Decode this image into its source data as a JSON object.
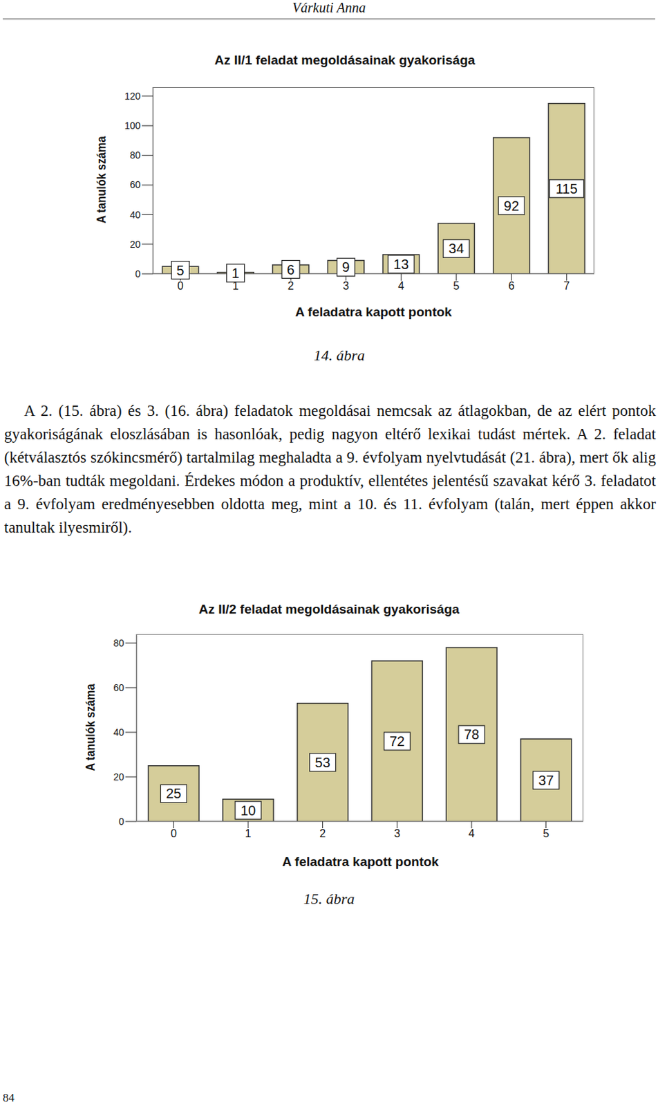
{
  "header": "Várkuti Anna",
  "chart_data": [
    {
      "type": "bar",
      "title": "Az II/1 feladat megoldásainak gyakorisága",
      "x_label": "A feladatra kapott pontok",
      "y_label": "A tanulók száma",
      "categories": [
        "0",
        "1",
        "2",
        "3",
        "4",
        "5",
        "6",
        "7"
      ],
      "values": [
        5,
        1,
        6,
        9,
        13,
        34,
        92,
        115
      ],
      "color": "#d5cd9a",
      "ylim": [
        0,
        126
      ],
      "yticks": [
        0,
        20,
        40,
        60,
        80,
        100,
        120
      ],
      "grid": false,
      "data_labels": true
    },
    {
      "type": "bar",
      "title": "Az II/2 feladat megoldásainak gyakorisága",
      "x_label": "A feladatra kapott pontok",
      "y_label": "A tanulók száma",
      "categories": [
        "0",
        "1",
        "2",
        "3",
        "4",
        "5"
      ],
      "values": [
        25,
        10,
        53,
        72,
        78,
        37
      ],
      "color": "#d5cd9a",
      "ylim": [
        0,
        84
      ],
      "yticks": [
        0,
        20,
        40,
        60,
        80
      ],
      "grid": false,
      "data_labels": true
    }
  ],
  "figure_captions": [
    "14. ábra",
    "15. ábra"
  ],
  "paragraph": "A 2. (15. ábra) és 3. (16. ábra) feladatok megoldásai nemcsak az átlagokban, de az elért pontok gyakoriságának eloszlásában is hasonlóak, pedig nagyon eltérő lexikai tudást mértek. A 2. feladat (kétválasztós szókincsmérő) tartalmilag meghaladta a 9. évfolyam nyelvtudását (21. ábra), mert ők alig 16%-ban tudták megoldani. Érdekes módon a produktív, ellentétes jelentésű szavakat kérő 3. feladatot a 9. évfolyam eredményesebben oldotta meg, mint a 10. és 11. évfolyam (talán, mert éppen akkor tanultak ilyesmiről).",
  "page_number": "84"
}
